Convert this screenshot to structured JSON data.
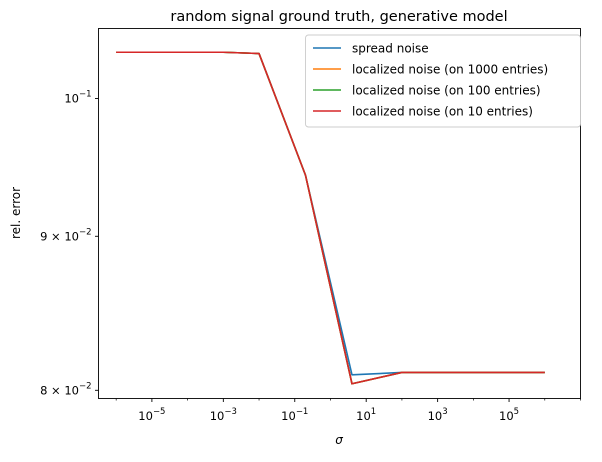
{
  "chart_data": {
    "type": "line",
    "title": "random signal ground truth, generative model",
    "xlabel": "σ",
    "ylabel": "rel. error",
    "xscale": "log",
    "yscale": "log",
    "xlim": [
      3.2e-07,
      10000000.0
    ],
    "ylim": [
      0.0795,
      0.1055
    ],
    "grid": false,
    "legend_position": "top-right",
    "x_ticks": [
      {
        "value": 1e-05,
        "base": "10",
        "exp": "−5"
      },
      {
        "value": 0.001,
        "base": "10",
        "exp": "−3"
      },
      {
        "value": 0.1,
        "base": "10",
        "exp": "−1"
      },
      {
        "value": 10,
        "base": "10",
        "exp": "1"
      },
      {
        "value": 1000,
        "base": "10",
        "exp": "3"
      },
      {
        "value": 100000,
        "base": "10",
        "exp": "5"
      }
    ],
    "y_ticks": [
      {
        "value": 0.1,
        "label": "10",
        "exp": "−1"
      },
      {
        "value": 0.09,
        "label": "9 × 10",
        "exp": "−2"
      },
      {
        "value": 0.08,
        "label": "8 × 10",
        "exp": "−2"
      }
    ],
    "series": [
      {
        "name": "spread noise",
        "color": "#1f77b4",
        "x": [
          1e-06,
          1e-05,
          0.0001,
          0.001,
          0.01,
          0.2,
          4,
          100,
          1000000.0
        ],
        "y": [
          0.1036,
          0.1036,
          0.1036,
          0.1036,
          0.1035,
          0.0943,
          0.08095,
          0.0811,
          0.0811
        ]
      },
      {
        "name": "localized noise (on 1000 entries)",
        "color": "#ff7f0e",
        "x": [
          1e-06,
          1e-05,
          0.0001,
          0.001,
          0.01,
          0.2,
          4,
          100,
          1000000.0
        ],
        "y": [
          0.1036,
          0.1036,
          0.1036,
          0.1036,
          0.1035,
          0.0943,
          0.0804,
          0.0811,
          0.0811
        ]
      },
      {
        "name": "localized noise (on 100 entries)",
        "color": "#2ca02c",
        "x": [
          1e-06,
          1e-05,
          0.0001,
          0.001,
          0.01,
          0.2,
          4,
          100,
          1000000.0
        ],
        "y": [
          0.1036,
          0.1036,
          0.1036,
          0.1036,
          0.1035,
          0.0943,
          0.0804,
          0.0811,
          0.0811
        ]
      },
      {
        "name": "localized noise (on 10 entries)",
        "color": "#d62728",
        "x": [
          1e-06,
          1e-05,
          0.0001,
          0.001,
          0.01,
          0.2,
          4,
          100,
          1000000.0
        ],
        "y": [
          0.1036,
          0.1036,
          0.1036,
          0.1036,
          0.1035,
          0.0943,
          0.0804,
          0.0811,
          0.0811
        ]
      }
    ]
  }
}
